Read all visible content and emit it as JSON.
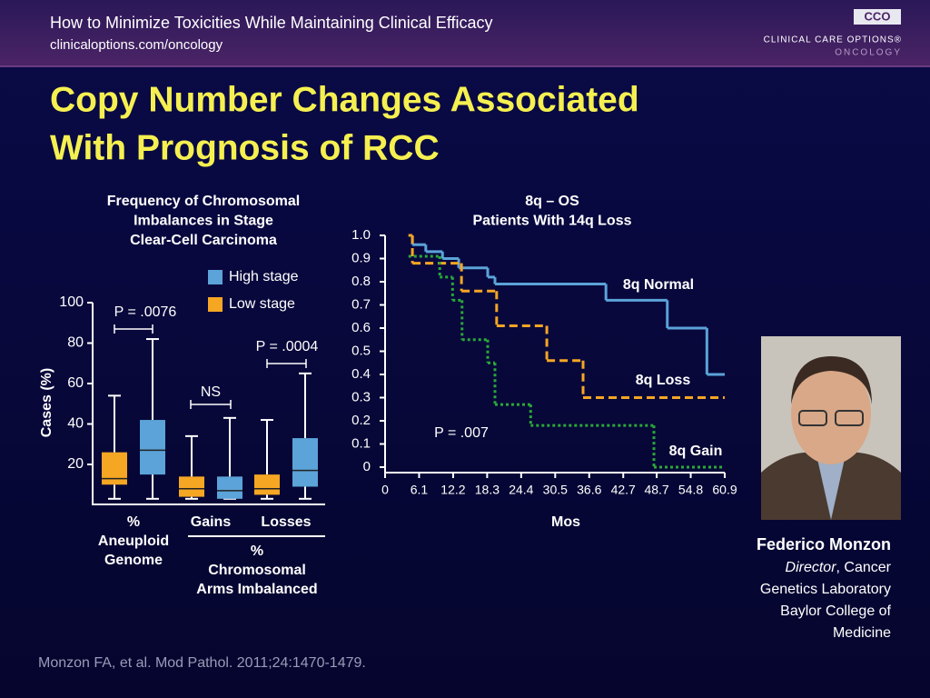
{
  "header": {
    "title": "How to Minimize Toxicities While Maintaining Clinical Efficacy",
    "url": "clinicaloptions.com/oncology",
    "logo": "CCO",
    "brand": "CLINICAL CARE OPTIONS®",
    "brand_sub": "ONCOLOGY"
  },
  "slide_title": [
    "Copy Number Changes Associated",
    "With Prognosis of RCC"
  ],
  "chart_data": [
    {
      "type": "box",
      "title": [
        "Frequency of Chromosomal",
        "Imbalances in Stage",
        "Clear-Cell Carcinoma"
      ],
      "categories": [
        "%\nAneuploid\nGenome",
        "Gains",
        "Losses"
      ],
      "group_label": "%\nChromosomal\nArms Imbalanced",
      "ylabel": "Cases (%)",
      "ylim": [
        0,
        100
      ],
      "yticks": [
        20,
        40,
        60,
        80,
        100
      ],
      "legend": "top-right",
      "series": [
        {
          "name": "High stage",
          "color": "#5ba3d8",
          "min": [
            3,
            3,
            3
          ],
          "q1": [
            15,
            3,
            9
          ],
          "median": [
            27,
            7,
            17
          ],
          "q3": [
            42,
            14,
            33
          ],
          "max": [
            82,
            43,
            65
          ]
        },
        {
          "name": "Low stage",
          "color": "#f5a623",
          "min": [
            3,
            3,
            3
          ],
          "q1": [
            10,
            4,
            5
          ],
          "median": [
            13,
            8,
            8
          ],
          "q3": [
            26,
            14,
            15
          ],
          "max": [
            54,
            34,
            42
          ]
        }
      ],
      "annotations": [
        "P = .0076",
        "NS",
        "P = .0004"
      ]
    },
    {
      "type": "step",
      "title": [
        "8q – OS",
        "Patients With 14q Loss"
      ],
      "xlabel": "Mos",
      "xlim": [
        0,
        60.9
      ],
      "xticks": [
        0,
        6.1,
        12.2,
        18.3,
        24.4,
        30.5,
        36.6,
        42.7,
        48.7,
        54.8,
        60.9
      ],
      "ylim": [
        0,
        1
      ],
      "yticks": [
        0,
        0.1,
        0.2,
        0.3,
        0.4,
        0.5,
        0.6,
        0.7,
        0.8,
        0.9,
        {
          "value": 1,
          "label": "1.0"
        }
      ],
      "series": [
        {
          "name": "8q Normal",
          "color": "#5ba3d8",
          "style": "solid",
          "x": [
            4.2,
            4.9,
            7.3,
            10.3,
            13.2,
            18.4,
            19.7,
            39.6,
            50.6,
            57.7
          ],
          "values": [
            1.0,
            0.96,
            0.93,
            0.9,
            0.86,
            0.82,
            0.79,
            0.72,
            0.6,
            0.4
          ]
        },
        {
          "name": "8q Loss",
          "color": "#f5a623",
          "style": "dashed",
          "x": [
            4.2,
            4.9,
            13.7,
            20.0,
            29.0,
            35.5
          ],
          "values": [
            1.0,
            0.88,
            0.76,
            0.61,
            0.46,
            0.3
          ]
        },
        {
          "name": "8q Gain",
          "color": "#2aa838",
          "style": "dotted",
          "x": [
            4.2,
            9.8,
            12.1,
            13.8,
            18.4,
            19.7,
            26.1,
            48.2
          ],
          "values": [
            0.91,
            0.82,
            0.72,
            0.55,
            0.45,
            0.27,
            0.18,
            0.0
          ]
        }
      ],
      "annotation": "P = .007"
    }
  ],
  "presenter": {
    "name": "Federico Monzon",
    "role": "Director",
    "affiliation": [
      ", Cancer",
      "Genetics Laboratory",
      "Baylor College of",
      "Medicine"
    ]
  },
  "citation": "Monzon FA, et al. Mod Pathol. 2011;24:1470-1479."
}
